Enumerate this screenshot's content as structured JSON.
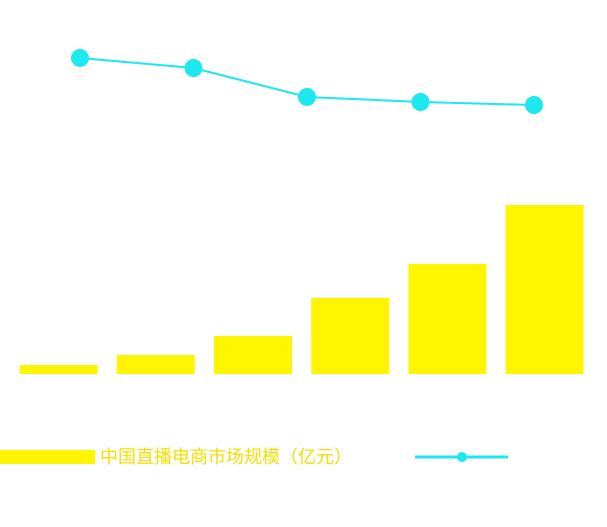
{
  "chart_data": {
    "type": "bar",
    "categories": [
      null,
      null,
      null,
      null,
      null,
      null
    ],
    "ylim": [
      0,
      200
    ],
    "y2lim": [
      0,
      100
    ],
    "series": [
      {
        "name": "中国直播电商市场规模（亿元）",
        "color": "#fff500",
        "values": [
          9,
          19,
          38,
          76,
          110,
          169
        ]
      },
      {
        "color": "#1de8f0",
        "axis": "y2",
        "values": [
          null,
          76.7,
          68.3,
          44.2,
          40,
          37.5
        ]
      }
    ]
  }
}
